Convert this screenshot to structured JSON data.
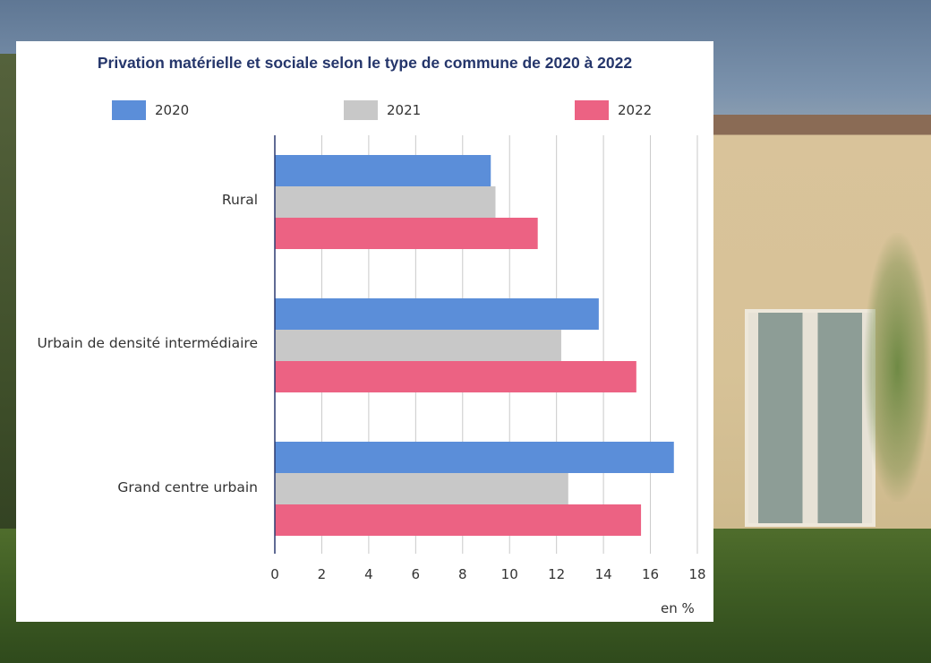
{
  "colors": {
    "series_2020": "#5b8ed9",
    "series_2021": "#c8c8c8",
    "series_2022": "#ec6283",
    "title": "#25366b",
    "grid": "#c9c9c9",
    "axis": "#2b3a70"
  },
  "chart_data": {
    "type": "bar",
    "orientation": "horizontal",
    "title": "Privation matérielle et sociale selon le type de commune de 2020 à 2022",
    "categories": [
      "Rural",
      "Urbain de densité intermédiaire",
      "Grand centre urbain"
    ],
    "series": [
      {
        "name": "2020",
        "values": [
          9.2,
          13.8,
          17.0
        ]
      },
      {
        "name": "2021",
        "values": [
          9.4,
          12.2,
          12.5
        ]
      },
      {
        "name": "2022",
        "values": [
          11.2,
          15.4,
          15.6
        ]
      }
    ],
    "xlim": [
      0,
      18
    ],
    "xticks": [
      "0",
      "2",
      "4",
      "6",
      "8",
      "10",
      "12",
      "14",
      "16",
      "18"
    ],
    "xlabel": "en %",
    "grid": "vertical",
    "legend": "top"
  }
}
